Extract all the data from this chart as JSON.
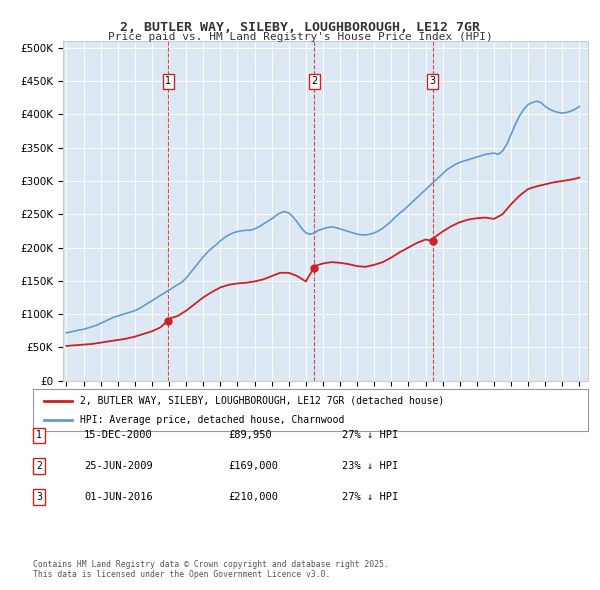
{
  "title": "2, BUTLER WAY, SILEBY, LOUGHBOROUGH, LE12 7GR",
  "subtitle": "Price paid vs. HM Land Registry's House Price Index (HPI)",
  "bg_color": "#dce9f5",
  "plot_bg_color": "#dce9f5",
  "sale_dates": [
    "2000-12-15",
    "2009-06-25",
    "2016-06-01"
  ],
  "sale_prices": [
    89950,
    169000,
    210000
  ],
  "sale_labels": [
    "1",
    "2",
    "3"
  ],
  "legend_red": "2, BUTLER WAY, SILEBY, LOUGHBOROUGH, LE12 7GR (detached house)",
  "legend_blue": "HPI: Average price, detached house, Charnwood",
  "table_rows": [
    [
      "1",
      "15-DEC-2000",
      "£89,950",
      "27% ↓ HPI"
    ],
    [
      "2",
      "25-JUN-2009",
      "£169,000",
      "23% ↓ HPI"
    ],
    [
      "3",
      "01-JUN-2016",
      "£210,000",
      "27% ↓ HPI"
    ]
  ],
  "footer": "Contains HM Land Registry data © Crown copyright and database right 2025.\nThis data is licensed under the Open Government Licence v3.0.",
  "hpi_years": [
    1995,
    1995.25,
    1995.5,
    1995.75,
    1996,
    1996.25,
    1996.5,
    1996.75,
    1997,
    1997.25,
    1997.5,
    1997.75,
    1998,
    1998.25,
    1998.5,
    1998.75,
    1999,
    1999.25,
    1999.5,
    1999.75,
    2000,
    2000.25,
    2000.5,
    2000.75,
    2001,
    2001.25,
    2001.5,
    2001.75,
    2002,
    2002.25,
    2002.5,
    2002.75,
    2003,
    2003.25,
    2003.5,
    2003.75,
    2004,
    2004.25,
    2004.5,
    2004.75,
    2005,
    2005.25,
    2005.5,
    2005.75,
    2006,
    2006.25,
    2006.5,
    2006.75,
    2007,
    2007.25,
    2007.5,
    2007.75,
    2008,
    2008.25,
    2008.5,
    2008.75,
    2009,
    2009.25,
    2009.5,
    2009.75,
    2010,
    2010.25,
    2010.5,
    2010.75,
    2011,
    2011.25,
    2011.5,
    2011.75,
    2012,
    2012.25,
    2012.5,
    2012.75,
    2013,
    2013.25,
    2013.5,
    2013.75,
    2014,
    2014.25,
    2014.5,
    2014.75,
    2015,
    2015.25,
    2015.5,
    2015.75,
    2016,
    2016.25,
    2016.5,
    2016.75,
    2017,
    2017.25,
    2017.5,
    2017.75,
    2018,
    2018.25,
    2018.5,
    2018.75,
    2019,
    2019.25,
    2019.5,
    2019.75,
    2020,
    2020.25,
    2020.5,
    2020.75,
    2021,
    2021.25,
    2021.5,
    2021.75,
    2022,
    2022.25,
    2022.5,
    2022.75,
    2023,
    2023.25,
    2023.5,
    2023.75,
    2024,
    2024.25,
    2024.5,
    2024.75,
    2025
  ],
  "hpi_values": [
    72000,
    73000,
    74500,
    76000,
    77000,
    79000,
    81000,
    83000,
    86000,
    89000,
    92000,
    95000,
    97000,
    99000,
    101000,
    103000,
    105000,
    108000,
    112000,
    116000,
    120000,
    124000,
    128000,
    132000,
    136000,
    140000,
    144000,
    148000,
    154000,
    162000,
    170000,
    178000,
    186000,
    193000,
    199000,
    204000,
    210000,
    215000,
    219000,
    222000,
    224000,
    225000,
    226000,
    226000,
    228000,
    231000,
    235000,
    239000,
    243000,
    248000,
    252000,
    254000,
    252000,
    246000,
    238000,
    229000,
    222000,
    220000,
    222000,
    226000,
    228000,
    230000,
    231000,
    230000,
    228000,
    226000,
    224000,
    222000,
    220000,
    219000,
    219000,
    220000,
    222000,
    225000,
    229000,
    234000,
    240000,
    246000,
    252000,
    257000,
    263000,
    269000,
    275000,
    281000,
    287000,
    293000,
    299000,
    305000,
    311000,
    317000,
    321000,
    325000,
    328000,
    330000,
    332000,
    334000,
    336000,
    338000,
    340000,
    341000,
    342000,
    340000,
    345000,
    355000,
    370000,
    385000,
    398000,
    408000,
    415000,
    418000,
    420000,
    418000,
    412000,
    408000,
    405000,
    403000,
    402000,
    403000,
    405000,
    408000,
    412000
  ],
  "red_years": [
    1995,
    1995.5,
    1996,
    1996.5,
    1997,
    1997.5,
    1998,
    1998.5,
    1999,
    1999.5,
    2000,
    2000.5,
    2000.92,
    2001,
    2001.5,
    2002,
    2002.5,
    2003,
    2003.5,
    2004,
    2004.5,
    2005,
    2005.5,
    2006,
    2006.5,
    2007,
    2007.5,
    2008,
    2008.5,
    2009,
    2009.46,
    2009.5,
    2010,
    2010.5,
    2011,
    2011.5,
    2012,
    2012.5,
    2013,
    2013.5,
    2014,
    2014.5,
    2015,
    2015.5,
    2016,
    2016.42,
    2016.5,
    2017,
    2017.5,
    2018,
    2018.5,
    2019,
    2019.5,
    2020,
    2020.5,
    2021,
    2021.5,
    2022,
    2022.5,
    2023,
    2023.5,
    2024,
    2024.5,
    2025
  ],
  "red_values": [
    52000,
    53000,
    54000,
    55000,
    57000,
    59000,
    61000,
    63000,
    66000,
    70000,
    74000,
    80000,
    89950,
    93000,
    97000,
    105000,
    115000,
    125000,
    133000,
    140000,
    144000,
    146000,
    147000,
    149000,
    152000,
    157000,
    162000,
    162000,
    157000,
    149000,
    169000,
    172000,
    176000,
    178000,
    177000,
    175000,
    172000,
    171000,
    174000,
    178000,
    185000,
    193000,
    200000,
    207000,
    212000,
    210000,
    215000,
    224000,
    232000,
    238000,
    242000,
    244000,
    245000,
    243000,
    250000,
    265000,
    278000,
    288000,
    292000,
    295000,
    298000,
    300000,
    302000,
    305000
  ]
}
